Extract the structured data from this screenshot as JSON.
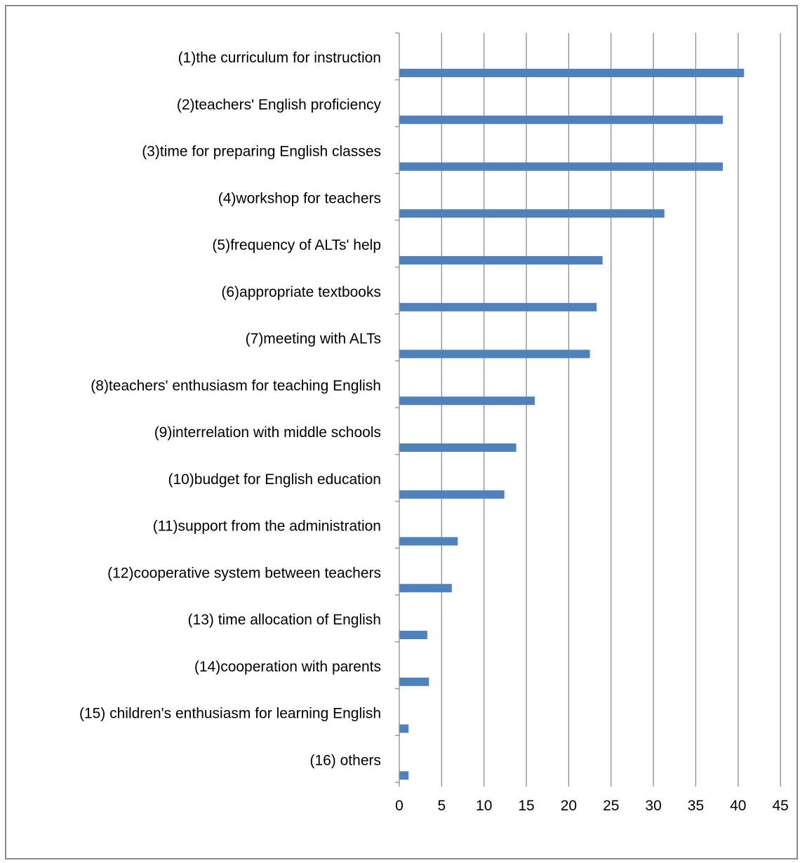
{
  "chart_data": {
    "type": "bar",
    "orientation": "horizontal",
    "title": "",
    "xlabel": "",
    "ylabel": "",
    "categories": [
      "(1)the curriculum for instruction",
      "(2)teachers' English proficiency",
      "(3)time for preparing English classes",
      "(4)workshop for teachers",
      "(5)frequency of ALTs' help",
      "(6)appropriate textbooks",
      "(7)meeting with ALTs",
      "(8)teachers' enthusiasm for teaching English",
      "(9)interrelation with middle schools",
      "(10)budget for English education",
      "(11)support from the administration",
      "(12)cooperative system between teachers",
      "(13) time allocation of English",
      "(14)cooperation with  parents",
      "(15) children's enthusiasm for learning English",
      "(16) others"
    ],
    "values": [
      40.7,
      38.2,
      38.2,
      31.3,
      24.0,
      23.3,
      22.5,
      16.0,
      13.8,
      12.4,
      6.9,
      6.2,
      3.3,
      3.5,
      1.1,
      1.1
    ],
    "xlim": [
      0,
      45
    ],
    "x_ticks": [
      "0",
      "5",
      "10",
      "15",
      "20",
      "25",
      "30",
      "35",
      "40",
      "45"
    ],
    "grid": true,
    "legend": "none",
    "colors": {
      "bar": "#4f81bd",
      "gridline": "#8c8c8c",
      "axis": "#8c8c8c",
      "border": "#8c8c8c"
    }
  }
}
